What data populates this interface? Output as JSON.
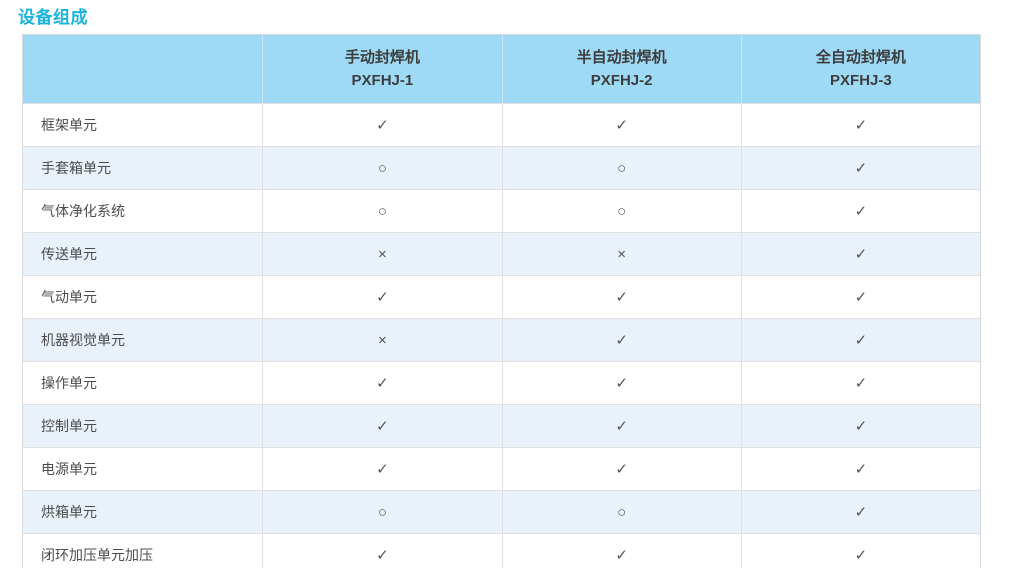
{
  "title": "设备组成",
  "colors": {
    "title_accent": "#1ab4dc",
    "header_bg": "#9edaf5",
    "row_alt_bg": "#e9f1fa",
    "border": "#d9d9d9",
    "header_text": "#3d3d3d",
    "body_text": "#4c4c4c"
  },
  "table": {
    "columns": [
      {
        "name": "手动封焊机",
        "model": "PXFHJ-1"
      },
      {
        "name": "半自动封焊机",
        "model": "PXFHJ-2"
      },
      {
        "name": "全自动封焊机",
        "model": "PXFHJ-3"
      }
    ],
    "rows": [
      {
        "label": "框架单元",
        "values": [
          "✓",
          "✓",
          "✓"
        ]
      },
      {
        "label": "手套箱单元",
        "values": [
          "○",
          "○",
          "✓"
        ]
      },
      {
        "label": "气体净化系统",
        "values": [
          "○",
          "○",
          "✓"
        ]
      },
      {
        "label": "传送单元",
        "values": [
          "×",
          "×",
          "✓"
        ]
      },
      {
        "label": "气动单元",
        "values": [
          "✓",
          "✓",
          "✓"
        ]
      },
      {
        "label": "机器视觉单元",
        "values": [
          "×",
          "✓",
          "✓"
        ]
      },
      {
        "label": "操作单元",
        "values": [
          "✓",
          "✓",
          "✓"
        ]
      },
      {
        "label": "控制单元",
        "values": [
          "✓",
          "✓",
          "✓"
        ]
      },
      {
        "label": "电源单元",
        "values": [
          "✓",
          "✓",
          "✓"
        ]
      },
      {
        "label": "烘箱单元",
        "values": [
          "○",
          "○",
          "✓"
        ]
      },
      {
        "label": "闭环加压单元加压",
        "values": [
          "✓",
          "✓",
          "✓"
        ]
      }
    ]
  }
}
